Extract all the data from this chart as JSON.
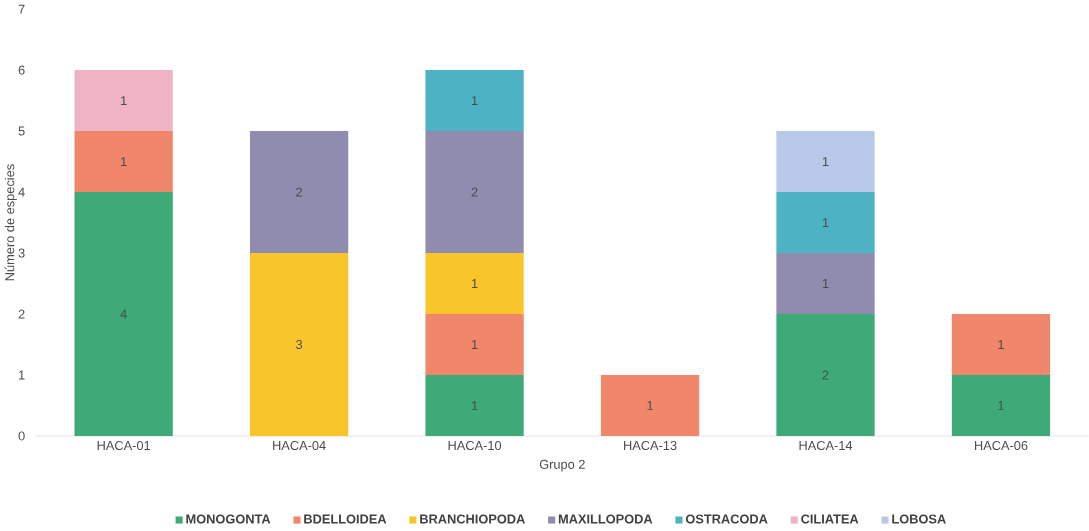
{
  "chart_data": {
    "type": "bar",
    "stacked": true,
    "data_labels": true,
    "legend": "bottom",
    "xlabel": "Grupo 2",
    "ylabel": "Número de especies",
    "categories": [
      "HACA-01",
      "HACA-04",
      "HACA-10",
      "HACA-13",
      "HACA-14",
      "HACA-06"
    ],
    "ylim": [
      0,
      7
    ],
    "yticks": [
      0,
      1,
      2,
      3,
      4,
      5,
      6,
      7
    ],
    "series": [
      {
        "name": "MONOGONTA",
        "color": "#3daa78",
        "values": [
          4,
          null,
          1,
          null,
          2,
          1
        ]
      },
      {
        "name": "BDELLOIDEA",
        "color": "#f0876a",
        "values": [
          1,
          null,
          1,
          1,
          null,
          1
        ]
      },
      {
        "name": "BRANCHIOPODA",
        "color": "#f8c62a",
        "values": [
          null,
          3,
          1,
          null,
          null,
          null
        ]
      },
      {
        "name": "MAXILLOPODA",
        "color": "#8f8cb0",
        "values": [
          null,
          2,
          2,
          null,
          1,
          null
        ]
      },
      {
        "name": "OSTRACODA",
        "color": "#4db3c4",
        "values": [
          null,
          null,
          1,
          null,
          1,
          null
        ]
      },
      {
        "name": "CILIATEA",
        "color": "#eeb4c4",
        "values": [
          1,
          null,
          null,
          null,
          null,
          null
        ]
      },
      {
        "name": "LOBOSA",
        "color": "#b8c8e8",
        "values": [
          null,
          null,
          null,
          null,
          1,
          null
        ]
      }
    ]
  }
}
